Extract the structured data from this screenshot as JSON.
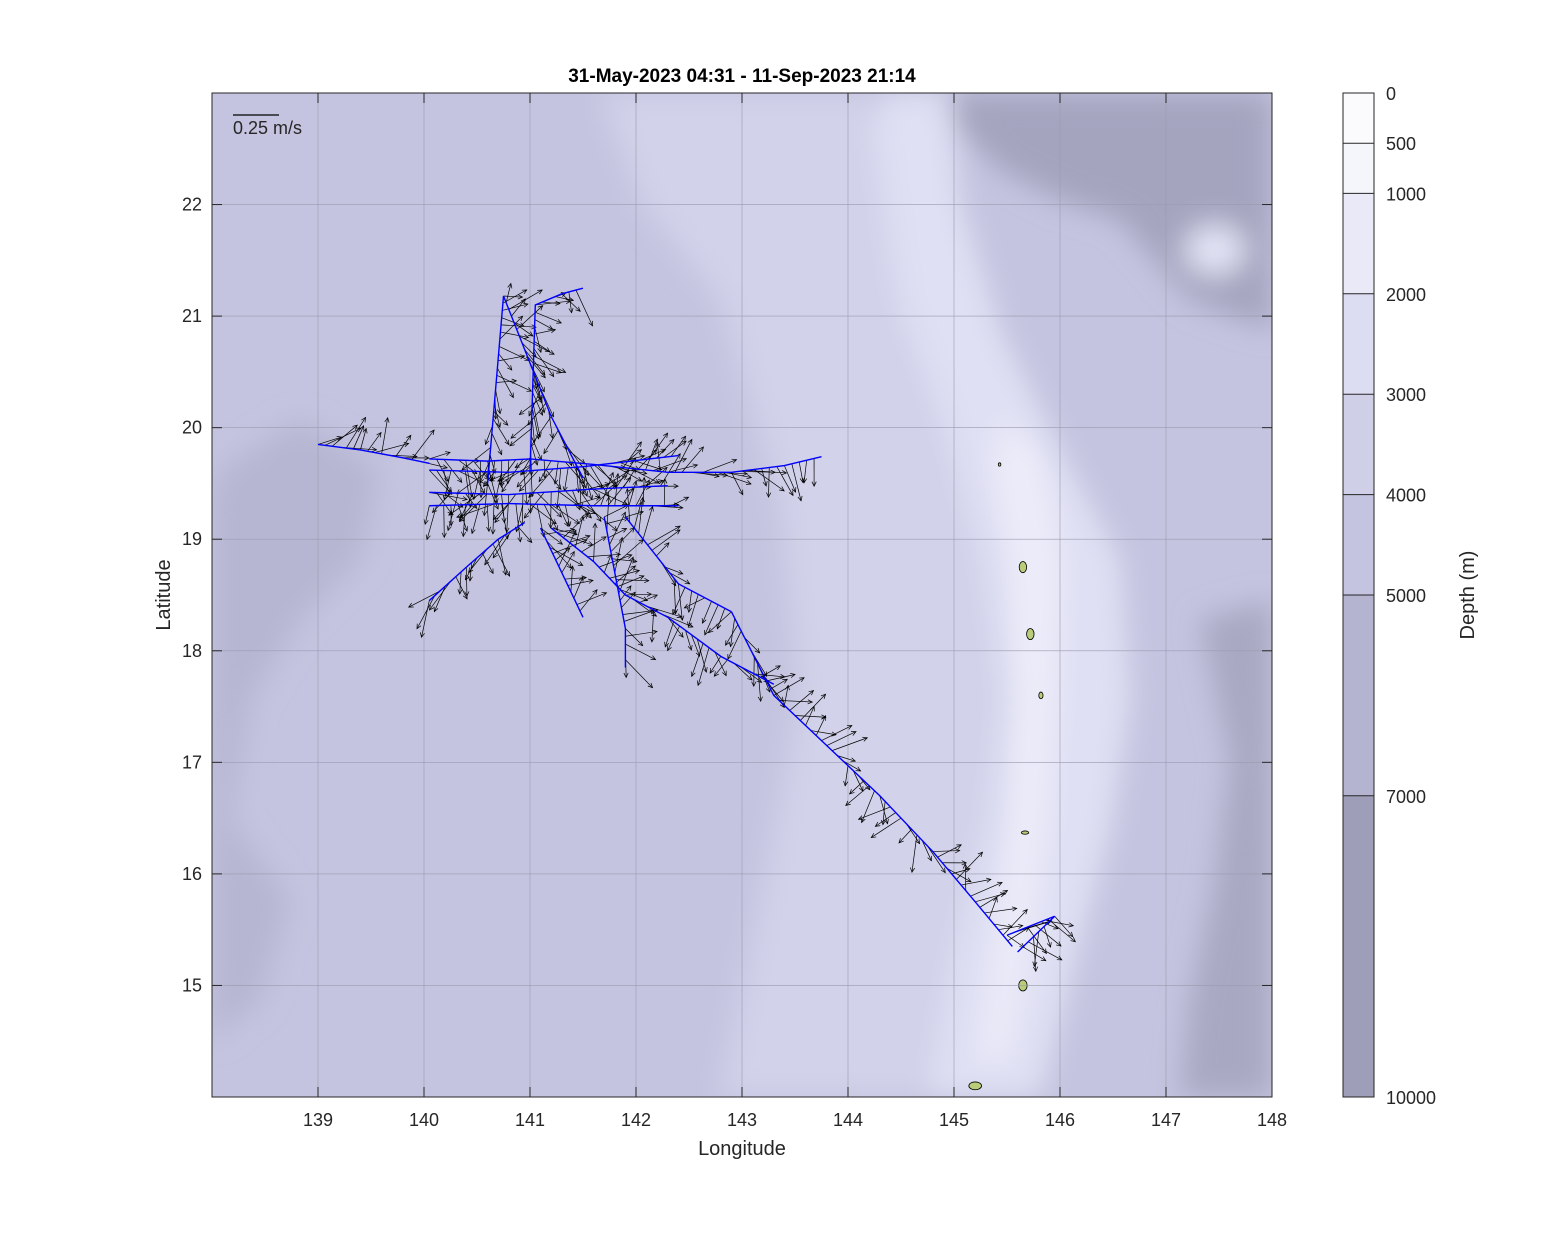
{
  "chart_data": {
    "type": "map",
    "title": "31-May-2023 04:31 - 11-Sep-2023 21:14",
    "xlabel": "Longitude",
    "ylabel": "Latitude",
    "xlim": [
      138,
      148
    ],
    "ylim": [
      14,
      23
    ],
    "xticks": [
      139,
      140,
      141,
      142,
      143,
      144,
      145,
      146,
      147,
      148
    ],
    "xtick_labels": [
      "139",
      "140",
      "141",
      "142",
      "143",
      "144",
      "145",
      "146",
      "147",
      "148"
    ],
    "yticks": [
      15,
      16,
      17,
      18,
      19,
      20,
      21,
      22
    ],
    "ytick_labels": [
      "15",
      "16",
      "17",
      "18",
      "19",
      "20",
      "21",
      "22"
    ],
    "grid": true,
    "scale_arrow_label": "0.25 m/s",
    "colorbar": {
      "label": "Depth (m)",
      "ticks": [
        0,
        500,
        1000,
        2000,
        3000,
        4000,
        5000,
        7000,
        10000
      ],
      "tick_labels": [
        "0",
        "500",
        "1000",
        "2000",
        "3000",
        "4000",
        "5000",
        "7000",
        "10000"
      ],
      "band_colors": [
        "#fbfbfe",
        "#f5f5fc",
        "#e9e9f8",
        "#dcdcf2",
        "#cfcfe7",
        "#c4c4e0",
        "#b4b4d0",
        "#9e9eb8"
      ]
    },
    "track_color": "#0000ff",
    "arrow_color": "#000000",
    "land_color": "#b8cc7a",
    "track_segments": [
      {
        "lon": [
          139.0,
          139.4,
          139.8,
          140.05
        ],
        "lat": [
          19.85,
          19.8,
          19.73,
          19.68
        ]
      },
      {
        "lon": [
          140.05,
          140.6,
          141.0,
          141.6,
          142.3,
          142.9,
          143.4,
          143.75
        ],
        "lat": [
          19.72,
          19.7,
          19.72,
          19.67,
          19.6,
          19.6,
          19.66,
          19.74
        ]
      },
      {
        "lon": [
          140.05,
          140.8,
          141.5,
          142.4
        ],
        "lat": [
          19.62,
          19.6,
          19.65,
          19.75
        ]
      },
      {
        "lon": [
          140.05,
          140.8,
          141.6,
          142.3
        ],
        "lat": [
          19.42,
          19.4,
          19.45,
          19.48
        ]
      },
      {
        "lon": [
          140.05,
          140.8,
          141.6,
          142.4
        ],
        "lat": [
          19.3,
          19.32,
          19.3,
          19.3
        ]
      },
      {
        "lon": [
          140.6,
          140.75,
          140.95,
          141.2,
          141.5
        ],
        "lat": [
          19.5,
          21.18,
          20.7,
          20.1,
          19.55
        ]
      },
      {
        "lon": [
          141.0,
          141.05,
          141.3,
          141.5
        ],
        "lat": [
          19.6,
          21.1,
          21.2,
          21.25
        ]
      },
      {
        "lon": [
          140.05,
          140.4,
          140.7,
          140.95
        ],
        "lat": [
          18.45,
          18.75,
          19.0,
          19.15
        ]
      },
      {
        "lon": [
          141.1,
          141.3,
          141.5
        ],
        "lat": [
          19.1,
          18.7,
          18.3
        ]
      },
      {
        "lon": [
          141.7,
          141.9,
          141.9
        ],
        "lat": [
          19.2,
          18.2,
          17.85
        ]
      },
      {
        "lon": [
          141.2,
          141.6,
          141.9,
          142.3,
          142.8,
          143.3
        ],
        "lat": [
          19.1,
          18.8,
          18.5,
          18.3,
          17.95,
          17.7
        ]
      },
      {
        "lon": [
          141.9,
          142.4,
          142.9
        ],
        "lat": [
          19.2,
          18.6,
          18.35
        ]
      },
      {
        "lon": [
          142.9,
          143.3,
          143.8,
          144.3,
          144.8,
          145.2,
          145.55
        ],
        "lat": [
          18.35,
          17.6,
          17.15,
          16.7,
          16.2,
          15.75,
          15.35
        ]
      },
      {
        "lon": [
          145.5,
          145.95,
          145.6
        ],
        "lat": [
          15.45,
          15.62,
          15.3
        ]
      }
    ],
    "islands": [
      {
        "lon": 145.65,
        "lat": 15.0,
        "rx": 0.04,
        "ry": 0.05
      },
      {
        "lon": 145.2,
        "lat": 14.1,
        "rx": 0.06,
        "ry": 0.035
      },
      {
        "lon": 145.65,
        "lat": 18.75,
        "rx": 0.035,
        "ry": 0.05
      },
      {
        "lon": 145.72,
        "lat": 18.15,
        "rx": 0.035,
        "ry": 0.05
      },
      {
        "lon": 145.82,
        "lat": 17.6,
        "rx": 0.02,
        "ry": 0.03
      },
      {
        "lon": 145.67,
        "lat": 16.37,
        "rx": 0.035,
        "ry": 0.015
      },
      {
        "lon": 145.43,
        "lat": 19.67,
        "rx": 0.012,
        "ry": 0.015
      }
    ]
  }
}
